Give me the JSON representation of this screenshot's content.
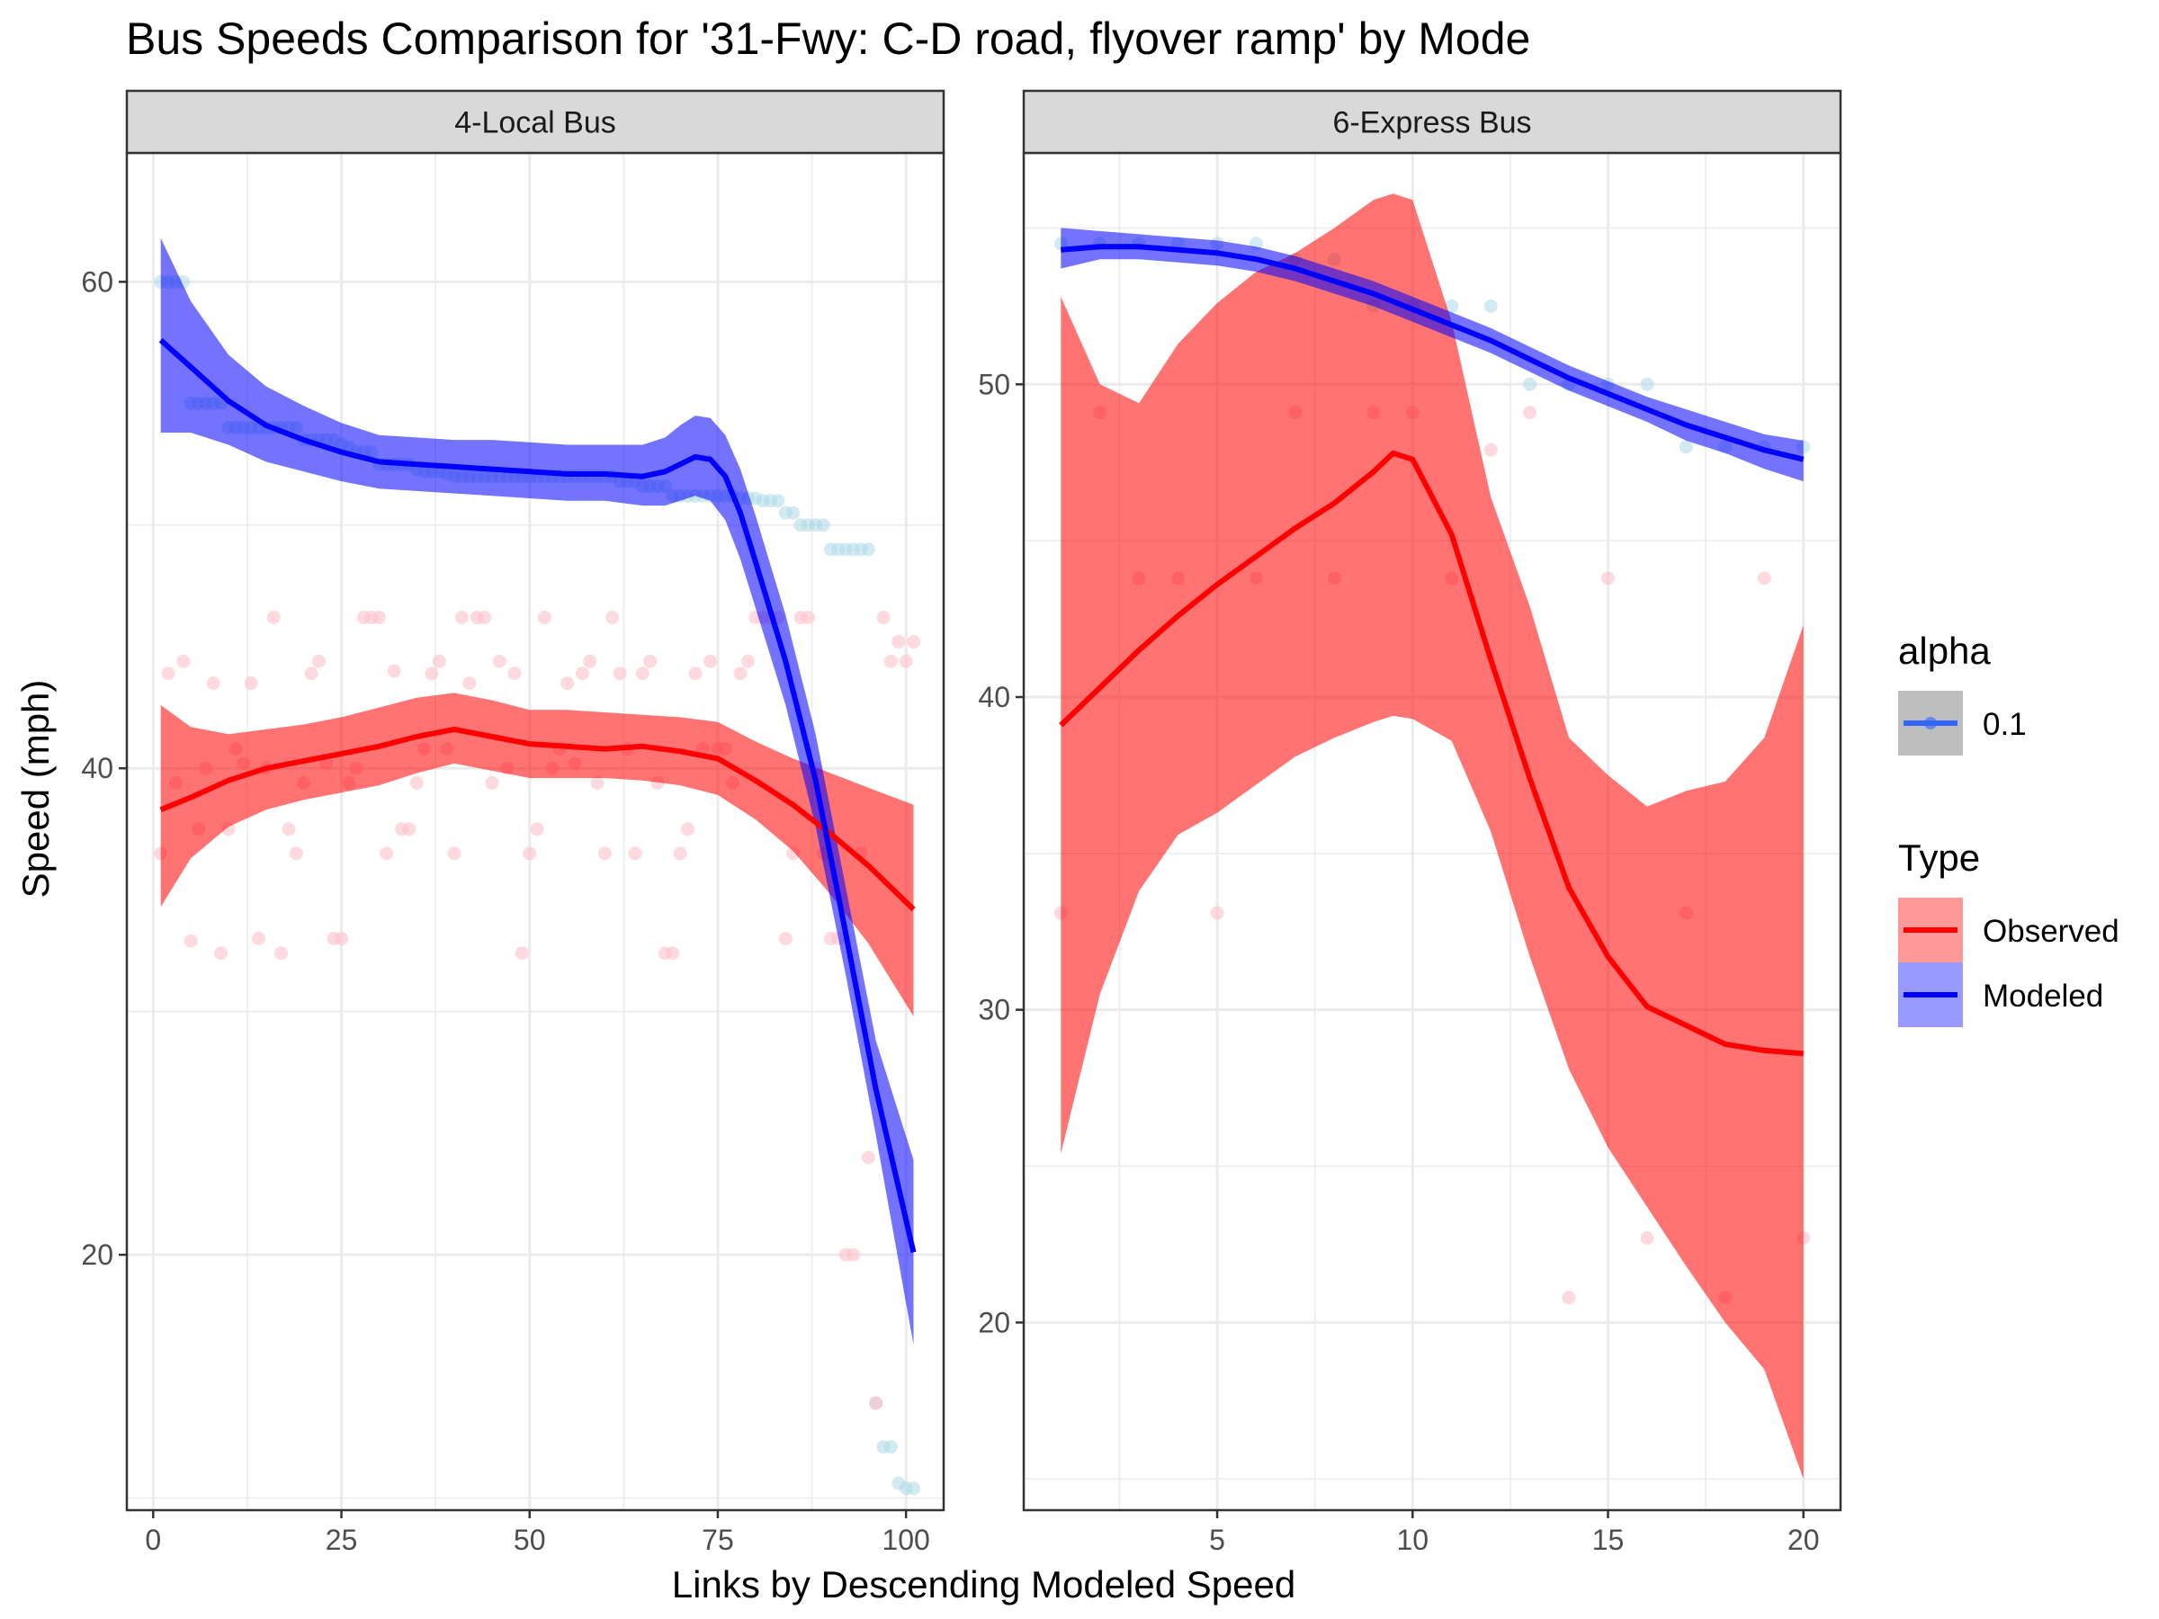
{
  "title": "Bus Speeds Comparison for '31-Fwy: C-D road, flyover ramp' by Mode",
  "x_axis_title": "Links by Descending Modeled Speed",
  "y_axis_title": "Speed (mph)",
  "legend": {
    "alpha_title": "alpha",
    "alpha_value": "0.1",
    "type_title": "Type",
    "observed_label": "Observed",
    "modeled_label": "Modeled"
  },
  "colors": {
    "observed": "#FF0000",
    "modeled": "#0000FF",
    "observed_points": "#FFC0CB",
    "modeled_points": "#ADD8E6",
    "strip_bg": "#D9D9D9",
    "grid": "#EBEBEB"
  },
  "chart_data": [
    {
      "type": "scatter",
      "facet": "4-Local Bus",
      "xlim": [
        -3.5,
        105
      ],
      "ylim": [
        9.5,
        65.3
      ],
      "x_ticks": [
        0,
        25,
        50,
        75,
        100
      ],
      "x_tick_labels": [
        "0",
        "25",
        "50",
        "75",
        "100"
      ],
      "y_ticks": [
        20,
        40,
        60
      ],
      "y_tick_labels": [
        "20",
        "40",
        "60"
      ],
      "modeled_points": {
        "x": [
          1,
          2,
          3,
          4,
          5,
          6,
          7,
          8,
          9,
          10,
          11,
          12,
          13,
          14,
          15,
          16,
          17,
          18,
          19,
          20,
          21,
          22,
          23,
          24,
          25,
          26,
          27,
          28,
          29,
          30,
          31,
          32,
          33,
          34,
          35,
          36,
          37,
          38,
          39,
          40,
          41,
          42,
          43,
          44,
          45,
          46,
          47,
          48,
          49,
          50,
          51,
          52,
          53,
          54,
          55,
          56,
          57,
          58,
          59,
          60,
          61,
          62,
          63,
          64,
          65,
          66,
          67,
          68,
          69,
          70,
          71,
          72,
          73,
          74,
          75,
          76,
          77,
          78,
          79,
          80,
          81,
          82,
          83,
          84,
          85,
          86,
          87,
          88,
          89,
          90,
          91,
          92,
          93,
          94,
          95,
          96,
          97,
          98,
          99,
          100,
          101
        ],
        "y": [
          60,
          60,
          60,
          60,
          55,
          55,
          55,
          55,
          55,
          54,
          54,
          54,
          54,
          54,
          54,
          54,
          54,
          54,
          54,
          53.5,
          53.5,
          53.5,
          53.5,
          53.5,
          53.3,
          53.2,
          53,
          53,
          53,
          52.5,
          52.5,
          52.5,
          52.5,
          52.5,
          52.3,
          52.2,
          52.2,
          52.2,
          52.1,
          52,
          52,
          52,
          52,
          52,
          52,
          52,
          52,
          52,
          52,
          52,
          52,
          52,
          52,
          52,
          52,
          52,
          52,
          52,
          52,
          52,
          52,
          51.8,
          51.8,
          51.8,
          51.6,
          51.6,
          51.6,
          51.6,
          51.2,
          51.2,
          51.2,
          51.2,
          51.2,
          51.2,
          51.2,
          51.2,
          51.2,
          51.1,
          51.1,
          51.1,
          51,
          51,
          51,
          50.5,
          50.5,
          50,
          50,
          50,
          50,
          49,
          49,
          49,
          49,
          49,
          49,
          13.9,
          12.1,
          12.1,
          10.6,
          10.4,
          10.4
        ]
      },
      "observed_points": {
        "x": [
          1,
          2,
          3,
          4,
          5,
          6,
          7,
          8,
          9,
          10,
          11,
          12,
          13,
          14,
          15,
          16,
          17,
          18,
          19,
          20,
          21,
          22,
          23,
          24,
          25,
          26,
          27,
          28,
          29,
          30,
          31,
          32,
          33,
          34,
          35,
          36,
          37,
          38,
          39,
          40,
          41,
          42,
          43,
          44,
          45,
          46,
          47,
          48,
          49,
          50,
          51,
          52,
          53,
          54,
          55,
          56,
          57,
          58,
          59,
          60,
          61,
          62,
          63,
          64,
          65,
          66,
          67,
          68,
          69,
          70,
          71,
          72,
          73,
          74,
          75,
          76,
          77,
          78,
          79,
          80,
          81,
          82,
          83,
          84,
          85,
          86,
          87,
          88,
          89,
          90,
          91,
          92,
          93,
          94,
          95,
          96,
          97,
          98,
          99,
          100,
          101
        ],
        "y": [
          36.5,
          43.9,
          39.4,
          44.4,
          32.9,
          37.5,
          40,
          43.5,
          32.4,
          37.5,
          40.8,
          40.2,
          43.5,
          33,
          40,
          46.2,
          32.4,
          37.5,
          36.5,
          39.4,
          43.9,
          44.4,
          40.2,
          33,
          33,
          39.4,
          40,
          46.2,
          46.2,
          46.2,
          36.5,
          44,
          37.5,
          37.5,
          39.4,
          40.8,
          43.9,
          44.4,
          40.8,
          36.5,
          46.2,
          43.5,
          46.2,
          46.2,
          39.4,
          44.4,
          40,
          43.9,
          32.4,
          36.5,
          37.5,
          46.2,
          40,
          40.8,
          43.5,
          40.2,
          43.9,
          44.4,
          39.4,
          36.5,
          46.2,
          43.9,
          40.8,
          36.5,
          43.9,
          44.4,
          39.4,
          32.4,
          32.4,
          36.5,
          37.5,
          43.9,
          40.8,
          44.4,
          40.8,
          40.8,
          39.4,
          43.9,
          44.4,
          46.2,
          46.2,
          46.2,
          46.2,
          33,
          36.5,
          46.2,
          46.2,
          40,
          36.5,
          33,
          33,
          20,
          20,
          36.5,
          24,
          13.9,
          46.2,
          44.4,
          45.2,
          44.4,
          45.2
        ]
      },
      "observed_fit": {
        "x": [
          1,
          5,
          10,
          15,
          20,
          25,
          30,
          35,
          40,
          45,
          50,
          55,
          60,
          65,
          70,
          75,
          80,
          85,
          90,
          95,
          101
        ],
        "y": [
          38.3,
          38.8,
          39.5,
          40,
          40.3,
          40.6,
          40.9,
          41.3,
          41.6,
          41.3,
          41,
          40.9,
          40.8,
          40.9,
          40.7,
          40.4,
          39.5,
          38.5,
          37.3,
          36,
          34.2
        ],
        "lower": [
          34.3,
          36.3,
          37.6,
          38.3,
          38.7,
          39,
          39.3,
          39.8,
          40.2,
          39.9,
          39.6,
          39.6,
          39.6,
          39.5,
          39.3,
          38.9,
          37.9,
          36.6,
          34.8,
          32.8,
          29.8
        ],
        "upper": [
          42.6,
          41.7,
          41.4,
          41.6,
          41.8,
          42.1,
          42.5,
          42.9,
          43.1,
          42.8,
          42.4,
          42.4,
          42.3,
          42.2,
          42.1,
          41.9,
          41.1,
          40.4,
          39.8,
          39.2,
          38.5
        ]
      },
      "modeled_fit": {
        "x": [
          1,
          5,
          10,
          15,
          20,
          25,
          30,
          35,
          40,
          45,
          50,
          55,
          60,
          65,
          68,
          70,
          72,
          74,
          76,
          78,
          80,
          84,
          88,
          92,
          96,
          101
        ],
        "y": [
          57.6,
          56.5,
          55.1,
          54.1,
          53.5,
          53,
          52.6,
          52.5,
          52.4,
          52.3,
          52.2,
          52.1,
          52.1,
          52,
          52.2,
          52.5,
          52.8,
          52.7,
          52,
          50.5,
          48.5,
          44.4,
          39.5,
          33.2,
          26.8,
          20.1
        ],
        "lower": [
          53.8,
          53.8,
          53.3,
          52.6,
          52.2,
          51.8,
          51.5,
          51.4,
          51.3,
          51.2,
          51.1,
          51,
          51,
          50.8,
          50.8,
          51,
          51.2,
          51,
          50.2,
          48.6,
          46.6,
          42.6,
          37.6,
          31.5,
          24.9,
          16.3
        ],
        "upper": [
          61.8,
          59.2,
          57,
          55.7,
          54.9,
          54.2,
          53.7,
          53.6,
          53.5,
          53.5,
          53.4,
          53.3,
          53.3,
          53.3,
          53.6,
          54.1,
          54.5,
          54.4,
          53.7,
          52.3,
          50.4,
          46.3,
          41.4,
          35.1,
          28.8,
          23.9
        ]
      }
    },
    {
      "type": "scatter",
      "facet": "6-Express Bus",
      "xlim": [
        0.05,
        20.95
      ],
      "ylim": [
        14.0,
        57.4
      ],
      "x_ticks": [
        5,
        10,
        15,
        20
      ],
      "x_tick_labels": [
        "5",
        "10",
        "15",
        "20"
      ],
      "y_ticks": [
        20,
        30,
        40,
        50
      ],
      "y_tick_labels": [
        "20",
        "30",
        "40",
        "50"
      ],
      "modeled_points": {
        "x": [
          1,
          2,
          3,
          4,
          5,
          6,
          7,
          8,
          9,
          10,
          11,
          12,
          13,
          14,
          15,
          16,
          17,
          18,
          19,
          20
        ],
        "y": [
          54.5,
          54.5,
          54.5,
          54.5,
          54.5,
          54.5,
          54,
          54,
          52.5,
          52.5,
          52.5,
          52.5,
          50,
          50,
          50,
          50,
          48,
          48,
          48,
          48
        ]
      },
      "observed_points": {
        "x": [
          1,
          2,
          3,
          4,
          5,
          6,
          7,
          8,
          9,
          10,
          11,
          12,
          13,
          14,
          15,
          16,
          17,
          18,
          19,
          20
        ],
        "y": [
          33.1,
          49.1,
          43.8,
          43.8,
          33.1,
          43.8,
          49.1,
          43.8,
          49.1,
          49.1,
          43.8,
          47.9,
          49.1,
          20.8,
          43.8,
          22.7,
          33.1,
          20.8,
          43.8,
          22.7
        ]
      },
      "observed_fit": {
        "x": [
          1,
          2,
          3,
          4,
          5,
          6,
          7,
          8,
          9,
          9.5,
          10,
          11,
          12,
          13,
          14,
          15,
          16,
          17,
          18,
          19,
          20
        ],
        "y": [
          39.1,
          40.3,
          41.5,
          42.6,
          43.6,
          44.5,
          45.4,
          46.2,
          47.2,
          47.8,
          47.6,
          45.2,
          41.2,
          37.4,
          33.9,
          31.7,
          30.1,
          29.5,
          28.9,
          28.7,
          28.6
        ],
        "lower": [
          25.4,
          30.5,
          33.8,
          35.6,
          36.3,
          37.2,
          38.1,
          38.7,
          39.2,
          39.4,
          39.3,
          38.6,
          35.7,
          31.7,
          28.1,
          25.6,
          23.7,
          21.8,
          20,
          18.5,
          15
        ],
        "upper": [
          52.8,
          50,
          49.4,
          51.3,
          52.6,
          53.6,
          54.2,
          55,
          55.9,
          56.1,
          55.9,
          52,
          46.4,
          42.9,
          38.7,
          37.5,
          36.5,
          37,
          37.3,
          38.7,
          42.3
        ]
      },
      "modeled_fit": {
        "x": [
          1,
          2,
          3,
          4,
          5,
          6,
          7,
          8,
          9,
          10,
          11,
          12,
          13,
          14,
          15,
          16,
          17,
          18,
          19,
          20
        ],
        "y": [
          54.3,
          54.4,
          54.4,
          54.3,
          54.2,
          54,
          53.7,
          53.3,
          52.9,
          52.4,
          51.9,
          51.4,
          50.8,
          50.2,
          49.7,
          49.2,
          48.7,
          48.3,
          47.9,
          47.6
        ],
        "lower": [
          53.7,
          54,
          54,
          53.9,
          53.8,
          53.6,
          53.3,
          52.9,
          52.5,
          52,
          51.5,
          51,
          50.4,
          49.8,
          49.3,
          48.8,
          48.2,
          47.8,
          47.3,
          46.9
        ],
        "upper": [
          55,
          54.9,
          54.8,
          54.7,
          54.6,
          54.4,
          54.1,
          53.7,
          53.3,
          52.8,
          52.3,
          51.8,
          51.2,
          50.6,
          50.1,
          49.6,
          49.2,
          48.8,
          48.4,
          48.2
        ]
      }
    }
  ]
}
